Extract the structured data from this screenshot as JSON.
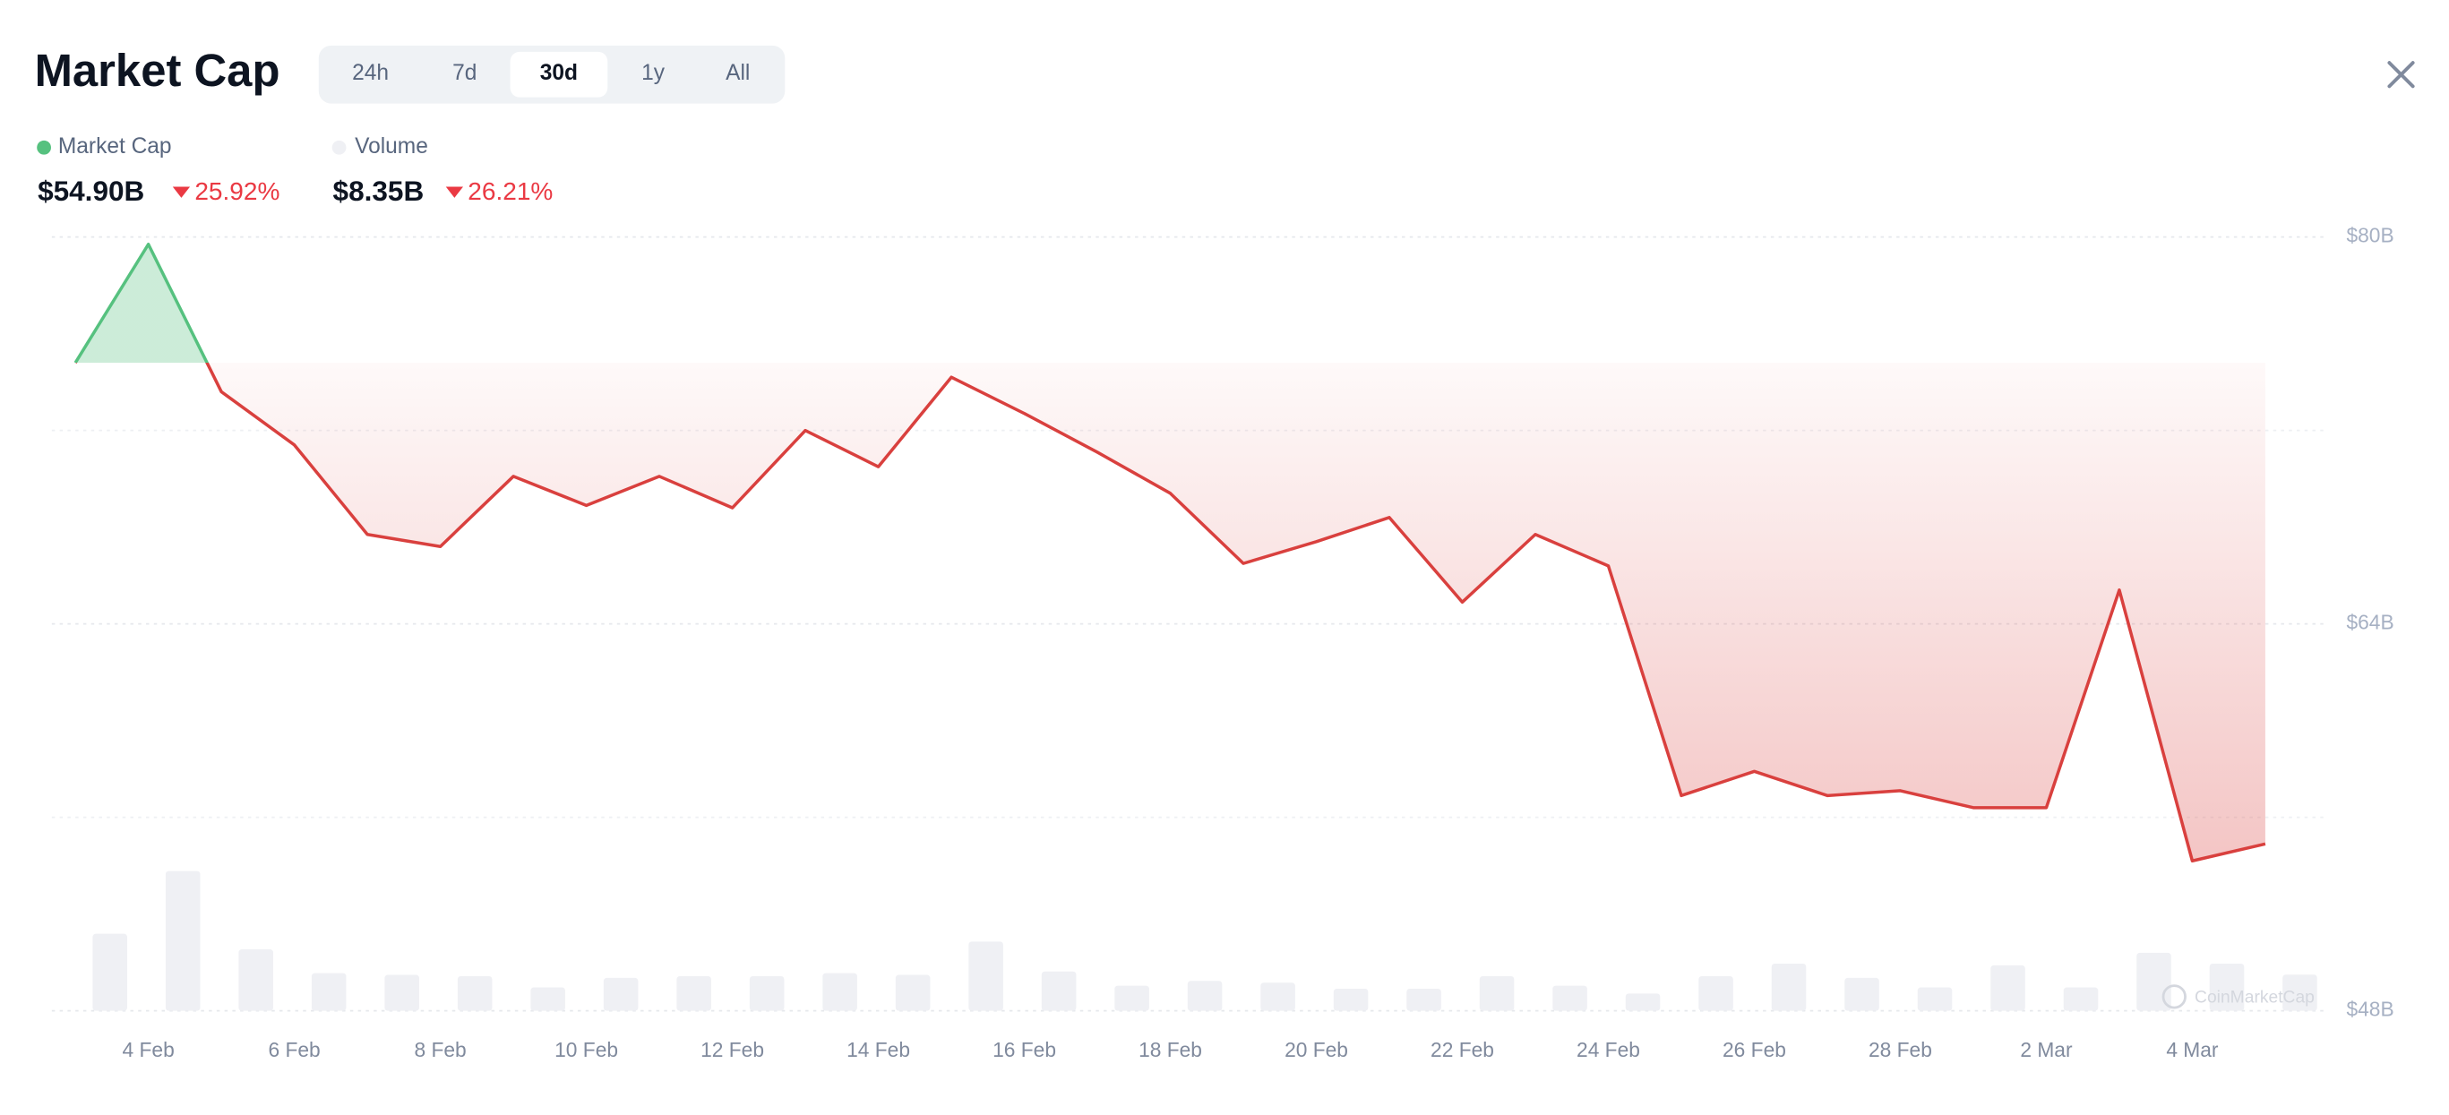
{
  "header": {
    "title": "Market Cap",
    "ranges": [
      "24h",
      "7d",
      "30d",
      "1y",
      "All"
    ],
    "active_range": "30d"
  },
  "summary": [
    {
      "name": "Market Cap",
      "value_label": "$54.90B",
      "change_label": "25.92%"
    },
    {
      "name": "Volume",
      "value_label": "$8.35B",
      "change_label": "26.21%"
    }
  ],
  "watermark": "CoinMarketCap",
  "chart_data": {
    "type": "line",
    "categories": [
      null,
      "4 Feb",
      null,
      "6 Feb",
      null,
      "8 Feb",
      null,
      "10 Feb",
      null,
      "12 Feb",
      null,
      "14 Feb",
      null,
      "16 Feb",
      null,
      "18 Feb",
      null,
      "20 Feb",
      null,
      "22 Feb",
      null,
      "24 Feb",
      null,
      "26 Feb",
      null,
      "28 Feb",
      null,
      "2 Mar",
      null,
      "4 Mar",
      null
    ],
    "series": [
      {
        "name": "Market Cap",
        "color": "#d9403e",
        "up_color": "#56c17f",
        "values": [
          74.8,
          79.7,
          73.6,
          71.4,
          67.7,
          67.2,
          70.1,
          68.9,
          70.1,
          68.8,
          72.0,
          70.5,
          74.2,
          72.7,
          71.1,
          69.4,
          66.5,
          67.4,
          68.4,
          64.9,
          67.7,
          66.4,
          56.9,
          57.9,
          56.9,
          57.1,
          56.4,
          56.4,
          65.4,
          54.2,
          54.9
        ]
      },
      {
        "name": "Volume",
        "type": "bar",
        "color": "#eff0f4",
        "values": [
          17.8,
          32.3,
          14.2,
          8.7,
          8.3,
          8.0,
          5.4,
          7.6,
          8.0,
          8.0,
          8.7,
          8.3,
          16.0,
          9.1,
          5.8,
          6.9,
          6.5,
          5.1,
          5.1,
          8.0,
          5.8,
          4.0,
          8.0,
          10.9,
          7.6,
          5.4,
          10.5,
          5.4,
          13.4,
          10.9,
          8.35
        ]
      }
    ],
    "ylim": [
      48,
      80
    ],
    "yticks": [
      {
        "value": 48,
        "label": "$48B"
      },
      {
        "value": 64,
        "label": "$64B"
      },
      {
        "value": 80,
        "label": "$80B"
      }
    ],
    "grid": true
  }
}
